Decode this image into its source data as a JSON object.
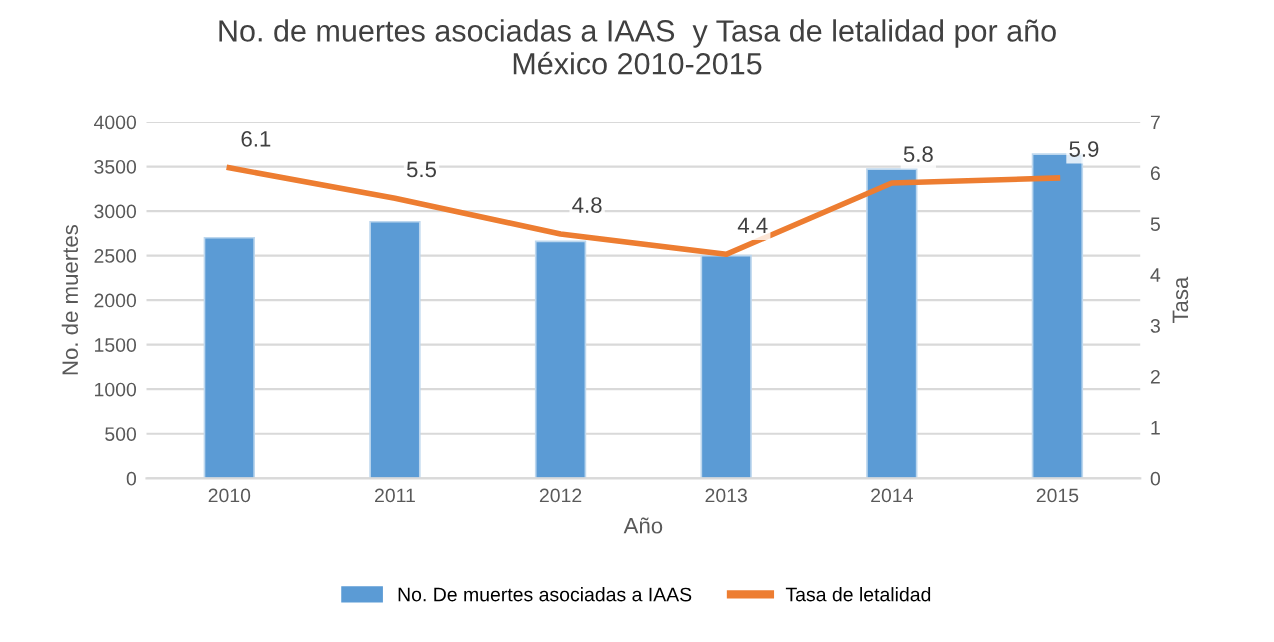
{
  "chart_data": {
    "type": "bar",
    "title": "No. de muertes asociadas a IAAS  y Tasa de letalidad por año\nMéxico 2010-2015",
    "xlabel": "Año",
    "ylabel": "No. de muertes",
    "y2label": "Tasa",
    "categories": [
      "2010",
      "2011",
      "2012",
      "2013",
      "2014",
      "2015"
    ],
    "series": [
      {
        "name": "No. De muertes asociadas a IAAS",
        "color": "#5b9bd5",
        "values": [
          2700,
          2880,
          2660,
          2500,
          3470,
          3640
        ]
      },
      {
        "name": "Tasa de letalidad",
        "type": "line",
        "axis": "y2",
        "color": "#ed7d31",
        "values": [
          6.1,
          5.5,
          4.8,
          4.4,
          5.8,
          5.9
        ],
        "value_labels": [
          "6.1",
          "5.5",
          "4.8",
          "4.4",
          "5.8",
          "5.9"
        ]
      }
    ],
    "ylim": [
      0,
      4000
    ],
    "yticks": [
      0,
      500,
      1000,
      1500,
      2000,
      2500,
      3000,
      3500,
      4000
    ],
    "y2lim": [
      0,
      7
    ],
    "y2ticks": [
      0,
      1,
      2,
      3,
      4,
      5,
      6,
      7
    ],
    "grid": "y",
    "legend": "bottom",
    "marker": "none"
  }
}
